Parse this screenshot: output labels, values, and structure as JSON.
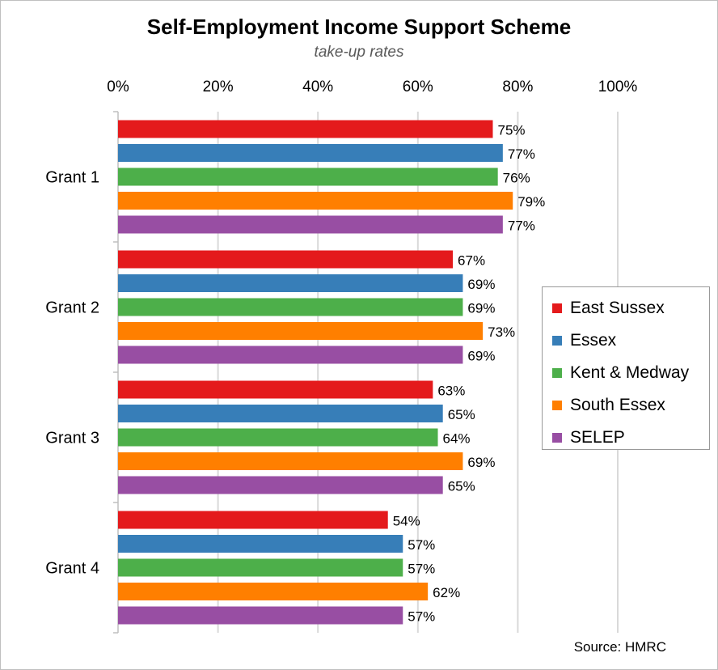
{
  "title": "Self-Employment Income Support Scheme",
  "subtitle": "take-up rates",
  "source": "Source: HMRC",
  "chart_data": {
    "type": "bar",
    "orientation": "horizontal",
    "title": "Self-Employment Income Support Scheme",
    "subtitle": "take-up rates",
    "categories": [
      "Grant 1",
      "Grant 2",
      "Grant 3",
      "Grant 4"
    ],
    "series": [
      {
        "name": "East Sussex",
        "color": "#e41a1c",
        "values": [
          75,
          67,
          63,
          54
        ]
      },
      {
        "name": "Essex",
        "color": "#377eb8",
        "values": [
          77,
          69,
          65,
          57
        ]
      },
      {
        "name": "Kent & Medway",
        "color": "#4daf4a",
        "values": [
          76,
          69,
          64,
          57
        ]
      },
      {
        "name": "South Essex",
        "color": "#ff7f00",
        "values": [
          79,
          73,
          69,
          62
        ]
      },
      {
        "name": "SELEP",
        "color": "#984ea3",
        "values": [
          77,
          69,
          65,
          57
        ]
      }
    ],
    "xlim": [
      0,
      100
    ],
    "x_ticks": [
      "0%",
      "20%",
      "40%",
      "60%",
      "80%",
      "100%"
    ],
    "value_suffix": "%",
    "grid": true,
    "legend_position": "right"
  }
}
